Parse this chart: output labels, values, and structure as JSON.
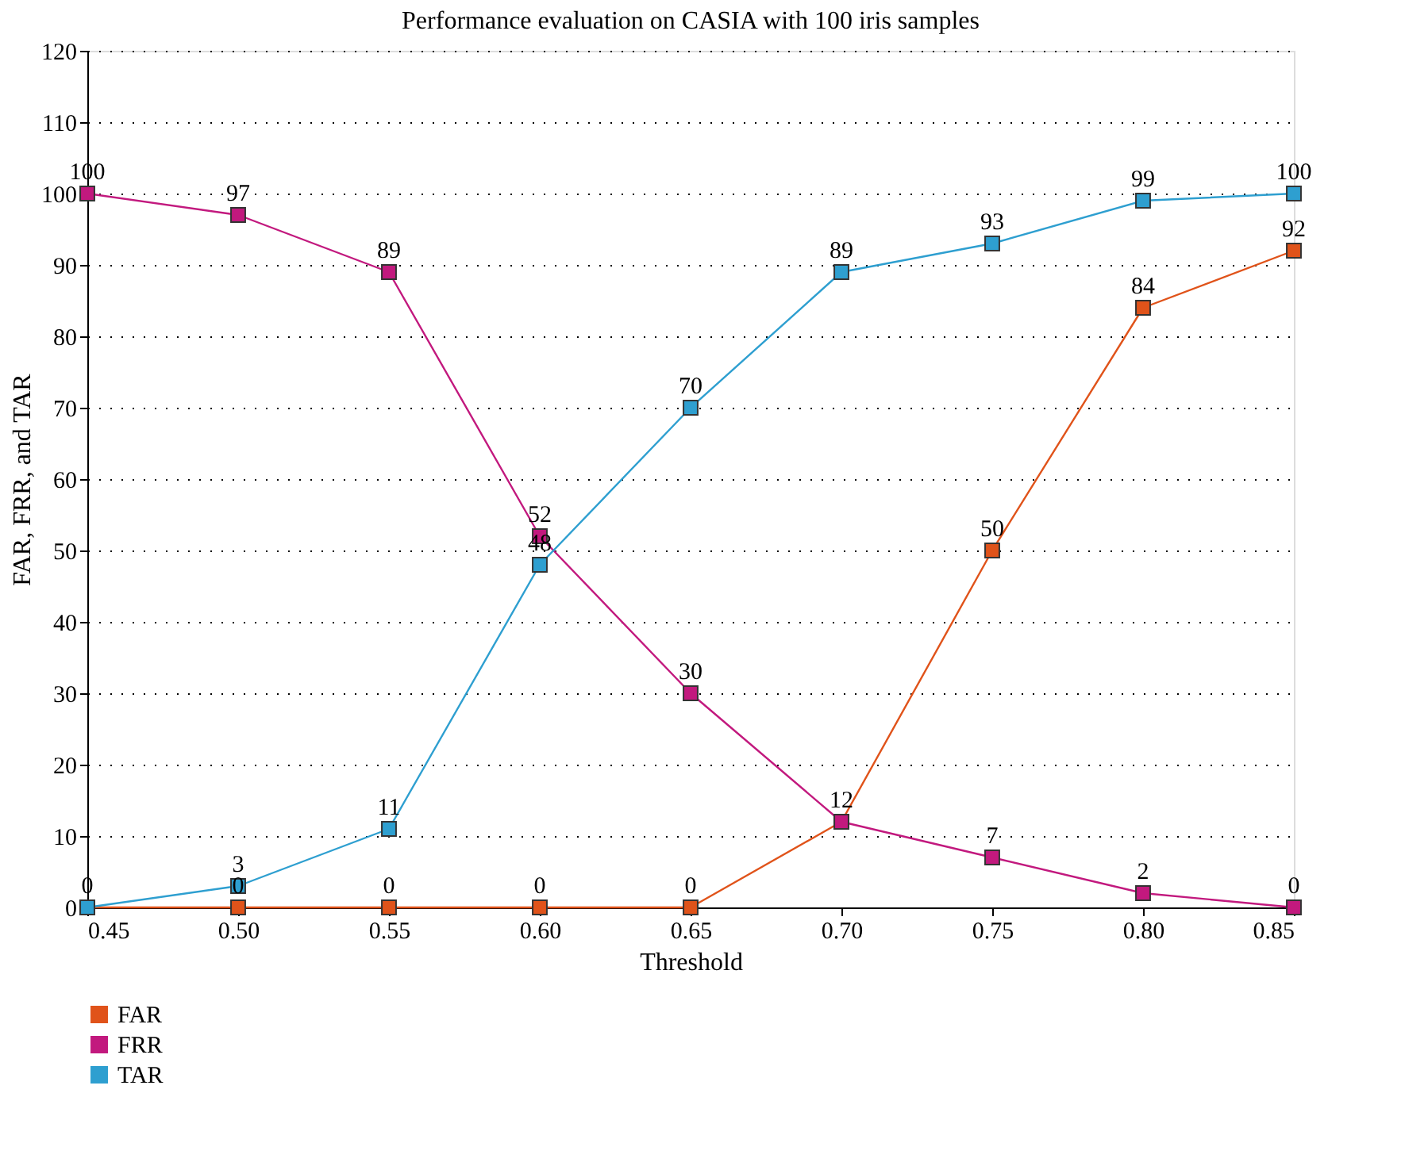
{
  "chart_data": {
    "type": "line",
    "title": "Performance evaluation on CASIA with 100 iris samples",
    "xlabel": "Threshold",
    "ylabel": "FAR, FRR, and TAR",
    "x": [
      0.45,
      0.5,
      0.55,
      0.6,
      0.65,
      0.7,
      0.75,
      0.8,
      0.85
    ],
    "series": [
      {
        "name": "FAR",
        "color": "#e0531a",
        "values": [
          0,
          0,
          0,
          0,
          0,
          12,
          50,
          84,
          92
        ],
        "value_labels": [
          "0",
          "0",
          "0",
          "0",
          "0",
          "12",
          "50",
          "84",
          "92"
        ]
      },
      {
        "name": "FRR",
        "color": "#c2197e",
        "values": [
          100,
          97,
          89,
          52,
          30,
          12,
          7,
          2,
          0
        ],
        "value_labels": [
          "100",
          "97",
          "89",
          "52",
          "30",
          null,
          "7",
          "2",
          "0"
        ]
      },
      {
        "name": "TAR",
        "color": "#2e9fd0",
        "values": [
          0,
          3,
          11,
          48,
          70,
          89,
          93,
          99,
          100
        ],
        "value_labels": [
          null,
          "3",
          "11",
          "48",
          "70",
          "89",
          "93",
          "99",
          "100"
        ]
      }
    ],
    "xlim": [
      0.45,
      0.85
    ],
    "xticks": [
      {
        "value": 0.45,
        "label": "0.45"
      },
      {
        "value": 0.5,
        "label": "0.50"
      },
      {
        "value": 0.55,
        "label": "0.55"
      },
      {
        "value": 0.6,
        "label": "0.60"
      },
      {
        "value": 0.65,
        "label": "0.65"
      },
      {
        "value": 0.7,
        "label": "0.70"
      },
      {
        "value": 0.75,
        "label": "0.75"
      },
      {
        "value": 0.8,
        "label": "0.80"
      },
      {
        "value": 0.85,
        "label": "0.85"
      }
    ],
    "ylim": [
      0,
      120
    ],
    "yticks": [
      0,
      10,
      20,
      30,
      40,
      50,
      60,
      70,
      80,
      90,
      100,
      110,
      120
    ],
    "grid": "y",
    "legend": "bottom left",
    "marker": "square",
    "line_style": "solid"
  }
}
